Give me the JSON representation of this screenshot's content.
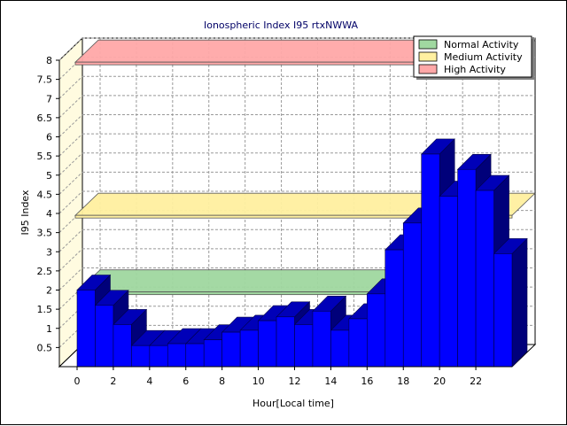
{
  "chart_data": {
    "type": "bar",
    "title": "Ionospheric Index I95 rtxNWWA",
    "xlabel": "Hour[Local time]",
    "ylabel": "I95 Index",
    "ylim": [
      0,
      8
    ],
    "yticks": [
      "0.5",
      "1",
      "1.5",
      "2",
      "2.5",
      "3",
      "3.5",
      "4",
      "4.5",
      "5",
      "5.5",
      "6",
      "6.5",
      "7",
      "7.5",
      "8"
    ],
    "xticks": [
      "0",
      "2",
      "4",
      "6",
      "8",
      "10",
      "12",
      "14",
      "16",
      "18",
      "20",
      "22"
    ],
    "grid": true,
    "legend_position": "top-right",
    "series": [
      {
        "color": "#0000ff",
        "hours": [
          0,
          1,
          2,
          3,
          4,
          5,
          6,
          7,
          8,
          9,
          10,
          11,
          12,
          13,
          14,
          15,
          16,
          17,
          18,
          19,
          20,
          21,
          22,
          23
        ],
        "values": [
          2.0,
          1.6,
          1.1,
          0.55,
          0.55,
          0.6,
          0.6,
          0.7,
          0.9,
          0.95,
          1.2,
          1.3,
          1.1,
          1.45,
          0.95,
          1.25,
          1.9,
          3.05,
          3.75,
          5.55,
          4.45,
          5.15,
          4.6,
          2.95
        ]
      }
    ],
    "bands": [
      {
        "name": "Normal Activity",
        "from": 1.95,
        "to": 2.0,
        "color": "#a0d8a0"
      },
      {
        "name": "Medium Activity",
        "from": 3.95,
        "to": 4.0,
        "color": "#fff0a0"
      },
      {
        "name": "High Activity",
        "from": 7.95,
        "to": 8.0,
        "color": "#ffa8a8"
      }
    ]
  }
}
